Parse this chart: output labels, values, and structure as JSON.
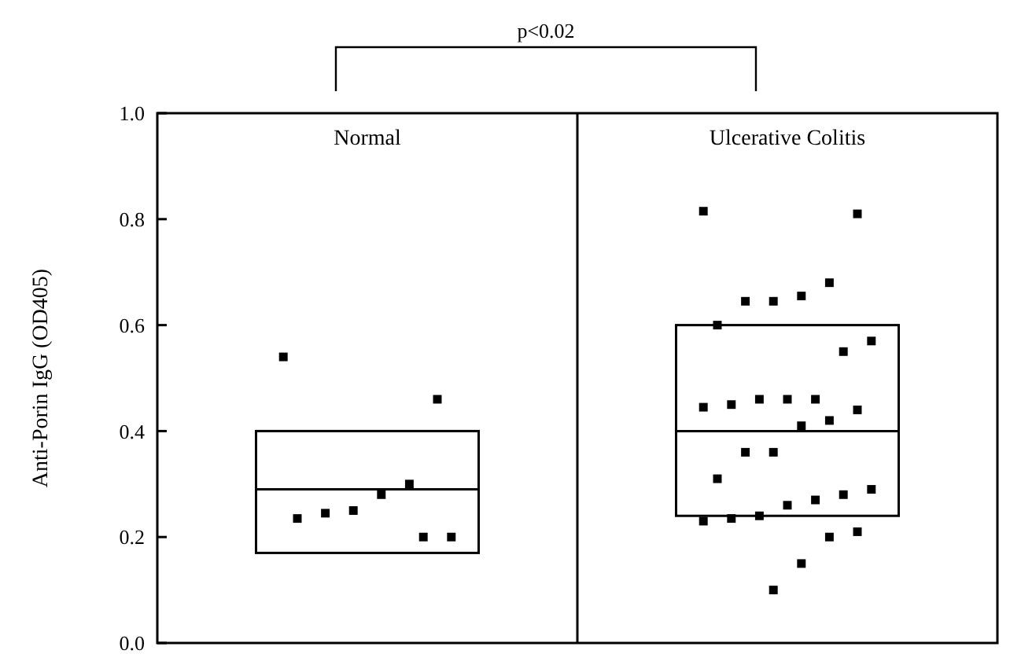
{
  "chart_data": {
    "type": "box",
    "categories": [
      "Normal",
      "Ulcerative Colitis"
    ],
    "ylabel": "Anti-Porin IgG (OD405)",
    "ylim": [
      0,
      1
    ],
    "yticks": [
      {
        "value": 0,
        "label": "0.0"
      },
      0.2,
      0.4,
      0.6,
      0.8,
      {
        "value": 1,
        "label": "1.0"
      }
    ],
    "marker": "square",
    "annotations": [
      "p<0.02"
    ],
    "series": [
      {
        "color": "#000000",
        "boxes": [
          {
            "low": 0.17,
            "q1": 0.17,
            "median": 0.29,
            "q3": 0.4,
            "high": 0.4
          },
          {
            "low": 0.24,
            "q1": 0.24,
            "median": 0.4,
            "q3": 0.6,
            "high": 0.6
          }
        ]
      },
      {
        "type": "scatter",
        "color": "#000000",
        "x": [
          "Normal",
          "Normal",
          "Normal",
          "Normal",
          "Normal",
          "Normal",
          "Normal",
          "Normal",
          "Normal",
          "Ulcerative Colitis",
          "Ulcerative Colitis",
          "Ulcerative Colitis",
          "Ulcerative Colitis",
          "Ulcerative Colitis",
          "Ulcerative Colitis",
          "Ulcerative Colitis",
          "Ulcerative Colitis",
          "Ulcerative Colitis",
          "Ulcerative Colitis",
          "Ulcerative Colitis",
          "Ulcerative Colitis",
          "Ulcerative Colitis",
          "Ulcerative Colitis",
          "Ulcerative Colitis",
          "Ulcerative Colitis",
          "Ulcerative Colitis",
          "Ulcerative Colitis",
          "Ulcerative Colitis",
          "Ulcerative Colitis",
          "Ulcerative Colitis",
          "Ulcerative Colitis",
          "Ulcerative Colitis",
          "Ulcerative Colitis",
          "Ulcerative Colitis",
          "Ulcerative Colitis",
          "Ulcerative Colitis",
          "Ulcerative Colitis",
          "Ulcerative Colitis",
          "Ulcerative Colitis",
          "Ulcerative Colitis"
        ],
        "values": [
          0.54,
          0.46,
          0.3,
          0.28,
          0.25,
          0.245,
          0.235,
          0.2,
          0.2,
          0.815,
          0.81,
          0.68,
          0.655,
          0.645,
          0.645,
          0.6,
          0.57,
          0.55,
          0.46,
          0.46,
          0.46,
          0.45,
          0.445,
          0.44,
          0.42,
          0.41,
          0.36,
          0.36,
          0.31,
          0.29,
          0.28,
          0.27,
          0.26,
          0.24,
          0.235,
          0.23,
          0.21,
          0.2,
          0.15,
          0.1
        ]
      }
    ]
  }
}
